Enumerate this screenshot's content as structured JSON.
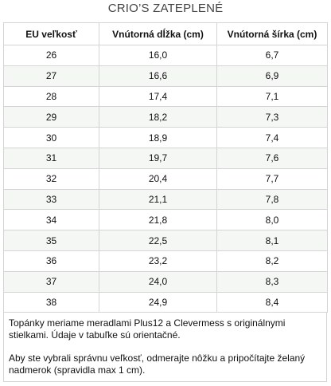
{
  "title": "CRIO’S ZATEPLENÉ",
  "table": {
    "headers": [
      "EU veľkosť",
      "Vnútorná dĺžka (cm)",
      "Vnútorná šírka (cm)"
    ],
    "rows": [
      [
        "26",
        "16,0",
        "6,7"
      ],
      [
        "27",
        "16,6",
        "6,9"
      ],
      [
        "28",
        "17,4",
        "7,1"
      ],
      [
        "29",
        "18,2",
        "7,3"
      ],
      [
        "30",
        "18,9",
        "7,4"
      ],
      [
        "31",
        "19,7",
        "7,6"
      ],
      [
        "32",
        "20,4",
        "7,7"
      ],
      [
        "33",
        "21,1",
        "7,8"
      ],
      [
        "34",
        "21,8",
        "8,0"
      ],
      [
        "35",
        "22,5",
        "8,1"
      ],
      [
        "36",
        "23,2",
        "8,2"
      ],
      [
        "37",
        "24,0",
        "8,3"
      ],
      [
        "38",
        "24,9",
        "8,4"
      ]
    ]
  },
  "note": {
    "paragraphs": [
      "Topánky meriame meradlami Plus12 a Clevermess s originálnymi stielkami. Údaje v tabuľke sú orientačné.",
      "Aby ste vybrali správnu veľkosť, odmerajte nôžku a pripočítajte želaný nadmerok (spravidla max 1 cm)."
    ]
  }
}
